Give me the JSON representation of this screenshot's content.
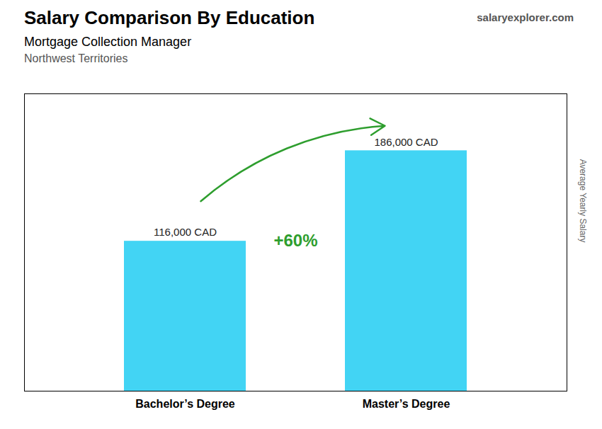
{
  "chart_data": {
    "type": "bar",
    "title": "Salary Comparison By Education",
    "subtitle": [
      "Mortgage Collection Manager",
      "Northwest Territories"
    ],
    "categories": [
      "Bachelor’s Degree",
      "Master’s Degree"
    ],
    "values": [
      116000,
      186000
    ],
    "value_labels": [
      "116,000 CAD",
      "186,000 CAD"
    ],
    "data_labels": true,
    "color": "#42d4f4",
    "ylabel": "Average Yearly Salary",
    "ylim": [
      0,
      230000
    ],
    "yticks": [],
    "tick_labels": "x",
    "grid": false,
    "annotations": [
      "+60%",
      "salaryexplorer.com"
    ]
  }
}
